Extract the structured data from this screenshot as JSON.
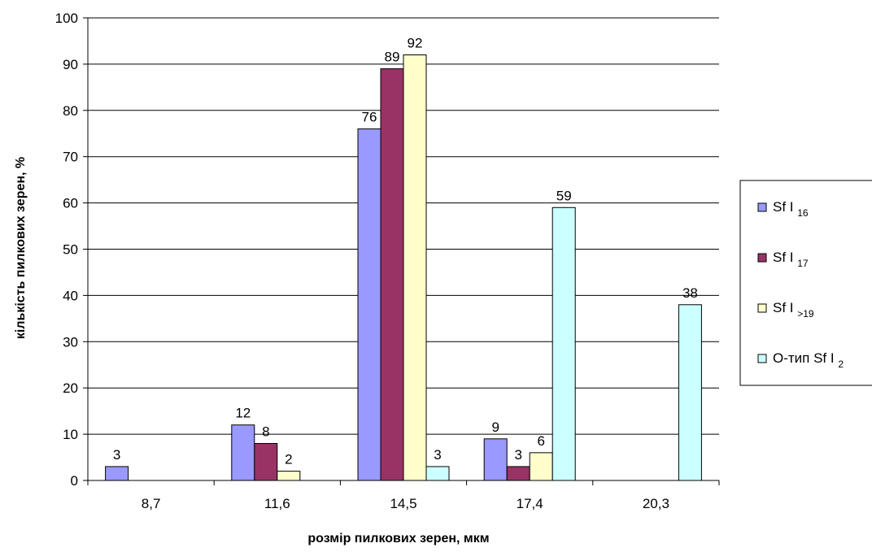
{
  "chart_data": {
    "type": "bar",
    "categories": [
      "8,7",
      "11,6",
      "14,5",
      "17,4",
      "20,3"
    ],
    "series": [
      {
        "name": "Sf I",
        "name_sub": "16",
        "color": "#9999ff",
        "values": [
          3,
          12,
          76,
          9,
          null
        ]
      },
      {
        "name": "Sf I",
        "name_sub": "17",
        "color": "#993366",
        "values": [
          null,
          8,
          89,
          3,
          null
        ]
      },
      {
        "name": "Sf I",
        "name_sub": ">19",
        "color": "#ffffcc",
        "values": [
          null,
          2,
          92,
          6,
          null
        ]
      },
      {
        "name": "О-тип Sf I",
        "name_sub": "2",
        "color": "#ccffff",
        "values": [
          null,
          null,
          3,
          59,
          38
        ]
      }
    ],
    "xlabel": "розмір пилкових зерен, мкм",
    "ylabel": "кількість пилкових зерен, %",
    "ylim": [
      0,
      100
    ],
    "yticks": [
      0,
      10,
      20,
      30,
      40,
      50,
      60,
      70,
      80,
      90,
      100
    ],
    "grid": true,
    "legend_position": "right"
  }
}
